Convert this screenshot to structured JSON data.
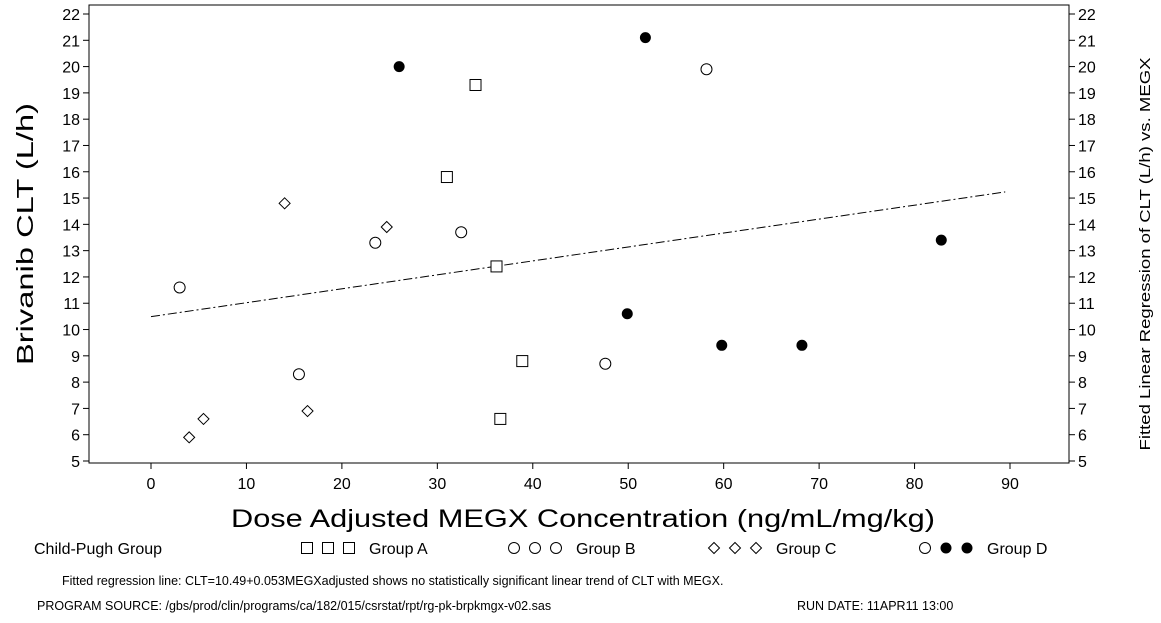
{
  "chart_data": {
    "type": "scatter",
    "xlabel": "Dose Adjusted MEGX Concentration (ng/mL/mg/kg)",
    "ylabel": "Brivanib CLT (L/h)",
    "y2label": "Fitted Linear Regression of CLT (L/h) vs. MEGX",
    "xlim": [
      0,
      90
    ],
    "ylim": [
      5,
      22
    ],
    "x_ticks": [
      0,
      10,
      20,
      30,
      40,
      50,
      60,
      70,
      80,
      90
    ],
    "y_ticks": [
      5,
      6,
      7,
      8,
      9,
      10,
      11,
      12,
      13,
      14,
      15,
      16,
      17,
      18,
      19,
      20,
      21,
      22
    ],
    "legend_title": "Child-Pugh Group",
    "legend_position": "bottom",
    "series": [
      {
        "name": "Group A",
        "marker": "square",
        "points": [
          [
            34.0,
            19.3
          ],
          [
            31.0,
            15.8
          ],
          [
            36.2,
            12.4
          ],
          [
            38.9,
            8.8
          ],
          [
            36.6,
            6.6
          ]
        ]
      },
      {
        "name": "Group B",
        "marker": "circle",
        "points": [
          [
            58.2,
            19.9
          ],
          [
            32.5,
            13.7
          ],
          [
            23.5,
            13.3
          ],
          [
            3.0,
            11.6
          ],
          [
            15.5,
            8.3
          ],
          [
            47.6,
            8.7
          ]
        ]
      },
      {
        "name": "Group C",
        "marker": "diamond",
        "points": [
          [
            14.0,
            14.8
          ],
          [
            24.7,
            13.9
          ],
          [
            16.4,
            6.9
          ],
          [
            5.5,
            6.6
          ],
          [
            4.0,
            5.9
          ]
        ]
      },
      {
        "name": "Group D",
        "marker": "filled-circle",
        "points": [
          [
            51.8,
            21.1
          ],
          [
            26.0,
            20.0
          ],
          [
            82.8,
            13.4
          ],
          [
            49.9,
            10.6
          ],
          [
            59.8,
            9.4
          ],
          [
            68.2,
            9.4
          ]
        ]
      }
    ],
    "regression_line": {
      "intercept": 10.49,
      "slope": 0.053,
      "x_range": [
        0,
        89.5
      ]
    },
    "footnote": "Fitted regression line: CLT=10.49+0.053MEGXadjusted shows no statistically significant linear trend of CLT with MEGX.",
    "program_source": "PROGRAM SOURCE: /gbs/prod/clin/programs/ca/182/015/csrstat/rpt/rg-pk-brpkmgx-v02.sas",
    "run_date": "RUN DATE:  11APR11 13:00"
  }
}
